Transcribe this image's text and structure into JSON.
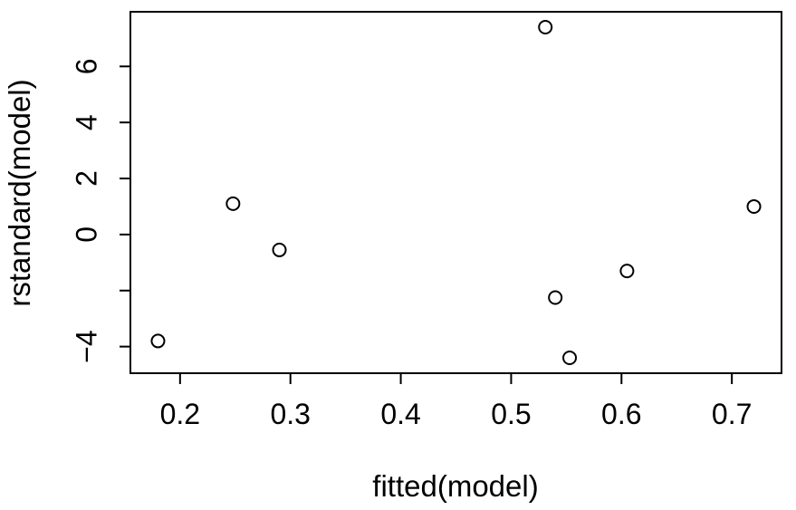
{
  "chart_data": {
    "type": "scatter",
    "title": "",
    "xlabel": "fitted(model)",
    "ylabel": "rstandard(model)",
    "xlim": [
      0.155,
      0.745
    ],
    "ylim": [
      -4.95,
      7.95
    ],
    "x_ticks": [
      0.2,
      0.3,
      0.4,
      0.5,
      0.6,
      0.7
    ],
    "x_tick_labels": [
      "0.2",
      "0.3",
      "0.4",
      "0.5",
      "0.6",
      "0.7"
    ],
    "y_ticks": [
      -4,
      -2,
      0,
      2,
      4,
      6
    ],
    "y_tick_labels": [
      "−4",
      "",
      "0",
      "2",
      "4",
      "6"
    ],
    "grid": false,
    "marker": "open-circle",
    "color": "#000000",
    "points": [
      {
        "x": 0.18,
        "y": -3.8
      },
      {
        "x": 0.248,
        "y": 1.1
      },
      {
        "x": 0.29,
        "y": -0.55
      },
      {
        "x": 0.531,
        "y": 7.4
      },
      {
        "x": 0.54,
        "y": -2.25
      },
      {
        "x": 0.553,
        "y": -4.4
      },
      {
        "x": 0.605,
        "y": -1.3
      },
      {
        "x": 0.72,
        "y": 1.0
      }
    ]
  }
}
